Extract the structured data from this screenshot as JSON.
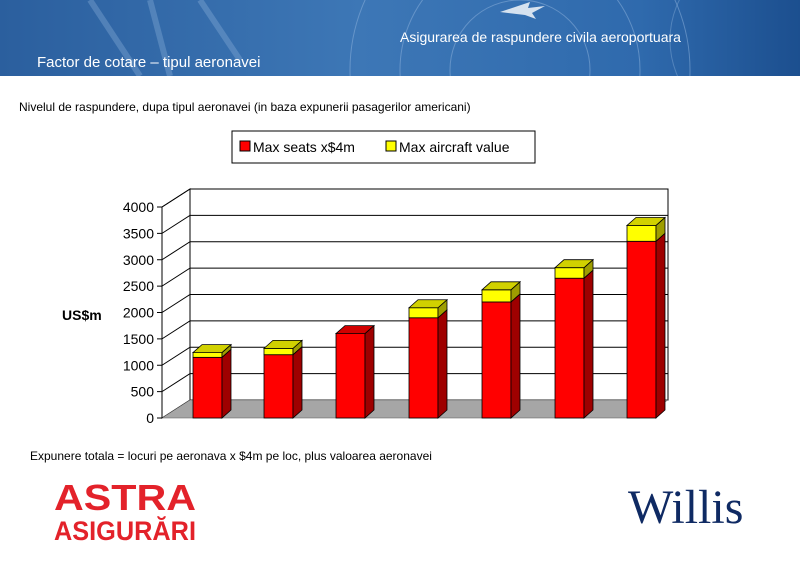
{
  "header": {
    "title": "Asigurarea de raspundere civila aeroportuara",
    "subtitle": "Factor de cotare – tipul aeronavei",
    "background_color": "#1f5a9c"
  },
  "caption": "Nivelul de raspundere, dupa tipul aeronavei (in baza expunerii pasagerilor americani)",
  "chart_data": {
    "type": "bar",
    "stacked": true,
    "ylabel": "US$m",
    "ylim": [
      0,
      4000
    ],
    "yticks": [
      "0",
      "500",
      "1000",
      "1500",
      "2000",
      "2500",
      "3000",
      "3500",
      "4000"
    ],
    "grid": true,
    "legend_position": "top",
    "series": [
      {
        "name": "Max seats x$4m",
        "color": "#ff0000",
        "values": [
          1150,
          1200,
          1600,
          1900,
          2200,
          2650,
          3350
        ]
      },
      {
        "name": "Max aircraft value",
        "color": "#ffff00",
        "values": [
          90,
          120,
          0,
          190,
          230,
          200,
          300
        ]
      }
    ]
  },
  "footnote": "Expunere totala  = locuri pe aeronava  x $4m pe loc, plus valoarea aeronavei",
  "logos": {
    "astra_line1": "ASTRA",
    "astra_line2": "ASIGURĂRI",
    "astra_color": "#e3222a",
    "willis": "Willis",
    "willis_color": "#0f2a63"
  }
}
